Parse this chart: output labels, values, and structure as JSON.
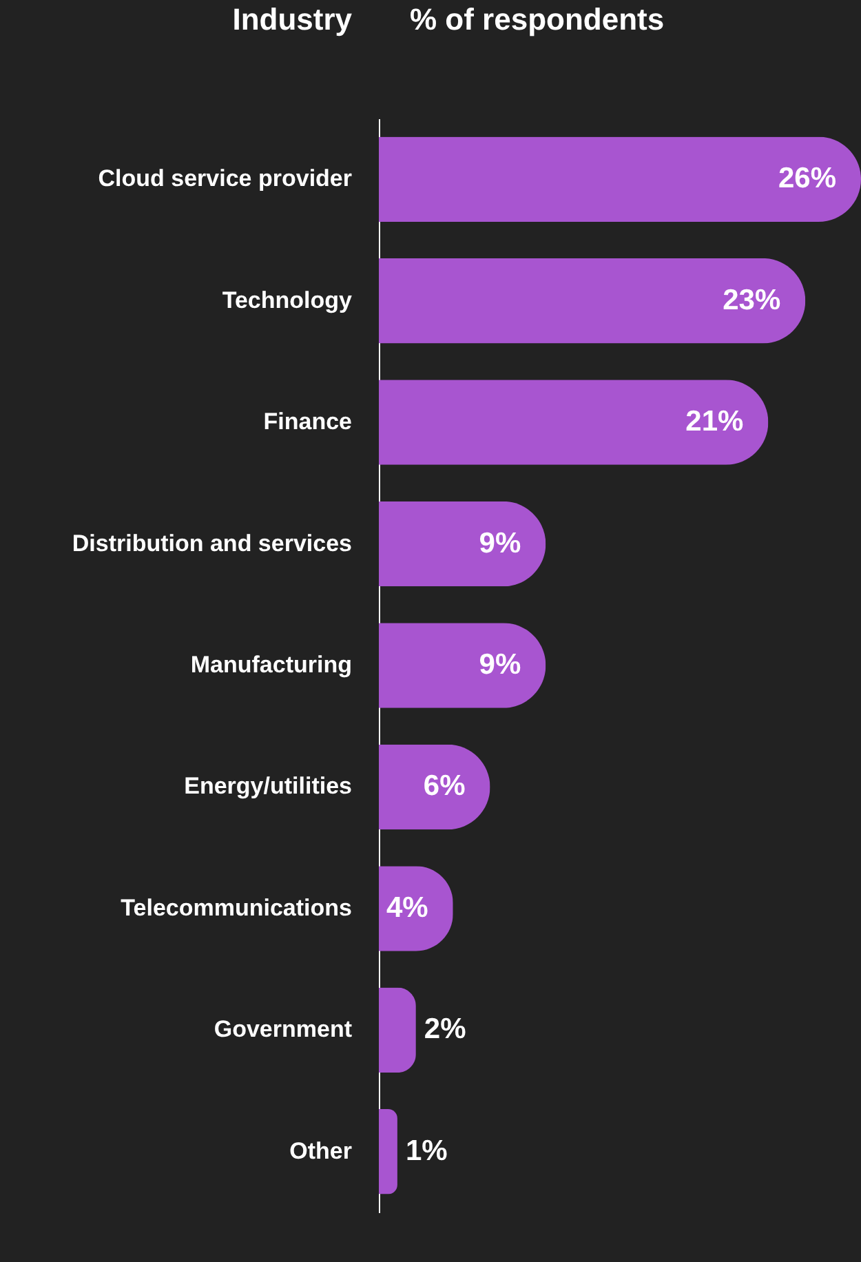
{
  "chart_data": {
    "type": "bar",
    "orientation": "horizontal",
    "xlabel": "% of respondents",
    "ylabel": "Industry",
    "categories": [
      "Cloud service provider",
      "Technology",
      "Finance",
      "Distribution and services",
      "Manufacturing",
      "Energy/utilities",
      "Telecommunications",
      "Government",
      "Other"
    ],
    "values": [
      26,
      23,
      21,
      9,
      9,
      6,
      4,
      2,
      1
    ],
    "value_labels": [
      "26%",
      "23%",
      "21%",
      "9%",
      "9%",
      "6%",
      "4%",
      "2%",
      "1%"
    ],
    "color": "#a855d0",
    "grid": false
  }
}
